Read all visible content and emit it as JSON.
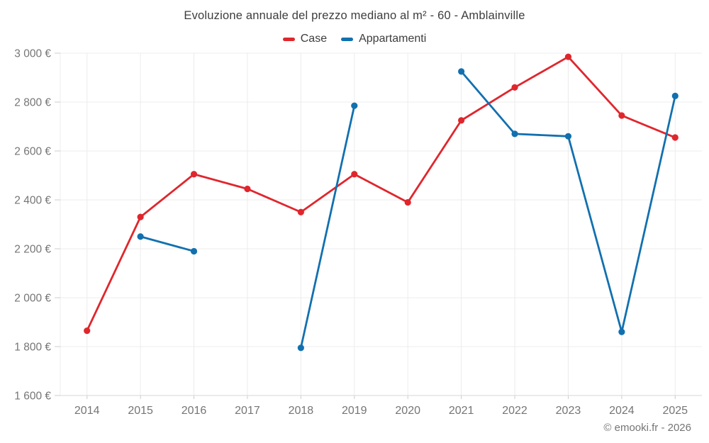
{
  "page": {
    "title": "Evoluzione annuale del prezzo mediano al m² - 60 - Amblainville",
    "footer": "© emooki.fr - 2026"
  },
  "legend": {
    "items": [
      {
        "label": "Case",
        "color": "#e0262d"
      },
      {
        "label": "Appartamenti",
        "color": "#1270af"
      }
    ]
  },
  "axis": {
    "y_labels": [
      "1 600 €",
      "1 800 €",
      "2 000 €",
      "2 200 €",
      "2 400 €",
      "2 600 €",
      "2 800 €",
      "3 000 €"
    ],
    "x_labels": [
      "2014",
      "2015",
      "2016",
      "2017",
      "2018",
      "2019",
      "2020",
      "2021",
      "2022",
      "2023",
      "2024",
      "2025"
    ]
  },
  "colors": {
    "case_red": "#e0262d",
    "appartamenti_blue": "#1270af",
    "gridline": "#ececec",
    "axis_line": "#d6d6d6",
    "tick": "#cccccc",
    "tick_label": "#757575",
    "title_text": "#3d3d3d"
  },
  "chart_data": {
    "type": "line",
    "title": "Evoluzione annuale del prezzo mediano al m² - 60 - Amblainville",
    "categories": [
      "2014",
      "2015",
      "2016",
      "2017",
      "2018",
      "2019",
      "2020",
      "2021",
      "2022",
      "2023",
      "2024",
      "2025"
    ],
    "series": [
      {
        "name": "Case",
        "color": "#e0262d",
        "values": [
          1865,
          2330,
          2505,
          2445,
          2350,
          2505,
          2390,
          2725,
          2860,
          2985,
          2745,
          2655
        ]
      },
      {
        "name": "Appartamenti",
        "color": "#1270af",
        "values": [
          null,
          2250,
          2190,
          null,
          1795,
          2785,
          null,
          2925,
          2670,
          2660,
          1860,
          2825
        ]
      }
    ],
    "ylabel": "",
    "xlabel": "",
    "ylim": [
      1600,
      3000
    ],
    "ytick_step": 200,
    "ytick_suffix": " €",
    "grid": true,
    "legend_position": "top",
    "missing_values_note": "null = no data point that year (line gap)"
  }
}
